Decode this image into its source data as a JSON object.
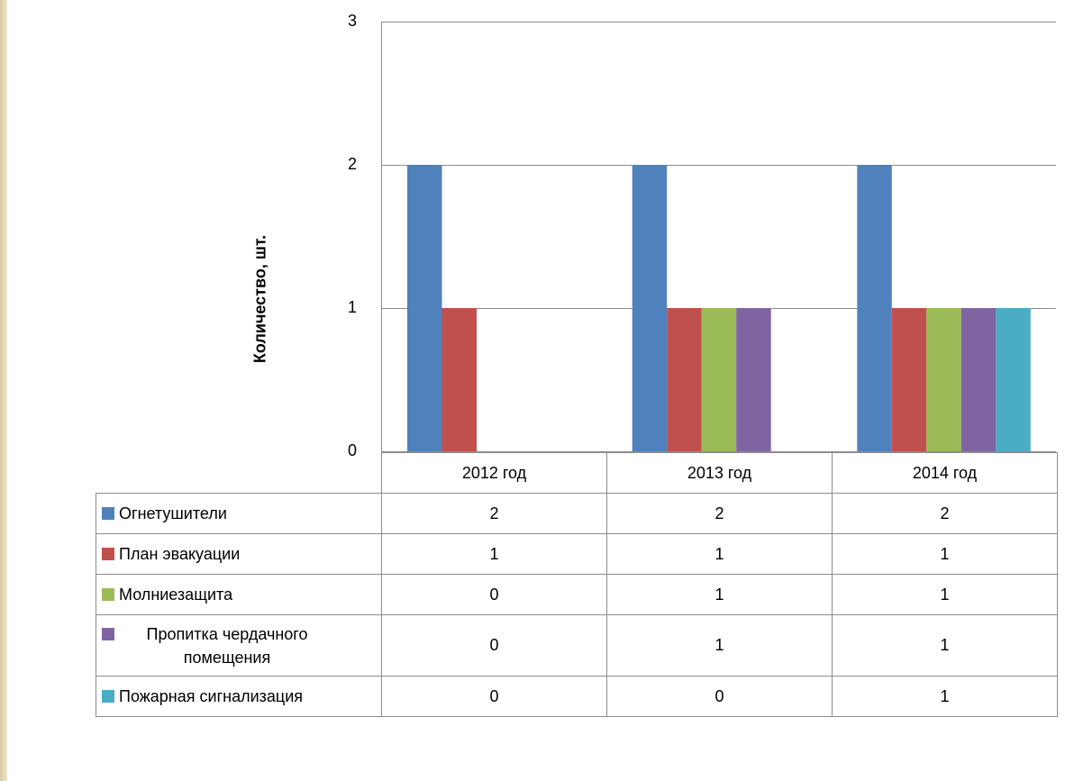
{
  "chart_data": {
    "type": "bar",
    "ylabel": "Количество, шт.",
    "ylim": [
      0,
      3
    ],
    "yticks": [
      "0",
      "1",
      "2",
      "3"
    ],
    "categories": [
      "2012 год",
      "2013 год",
      "2014 год"
    ],
    "series": [
      {
        "name": "Огнетушители",
        "color": "#4f81bd",
        "values": [
          2,
          2,
          2
        ]
      },
      {
        "name": "План эвакуации",
        "color": "#c0504d",
        "values": [
          1,
          1,
          1
        ]
      },
      {
        "name": "Молниезащита",
        "color": "#9bbb59",
        "values": [
          0,
          1,
          1
        ]
      },
      {
        "name": "Пропитка чердачного помещения",
        "color": "#8064a2",
        "values": [
          0,
          1,
          1
        ]
      },
      {
        "name": "Пожарная сигнализация",
        "color": "#4bacc6",
        "values": [
          0,
          0,
          1
        ]
      }
    ],
    "table": {
      "rows": [
        [
          "2",
          "2",
          "2"
        ],
        [
          "1",
          "1",
          "1"
        ],
        [
          "0",
          "1",
          "1"
        ],
        [
          "0",
          "1",
          "1"
        ],
        [
          "0",
          "0",
          "1"
        ]
      ]
    },
    "grid": true,
    "legend": "data-table"
  }
}
